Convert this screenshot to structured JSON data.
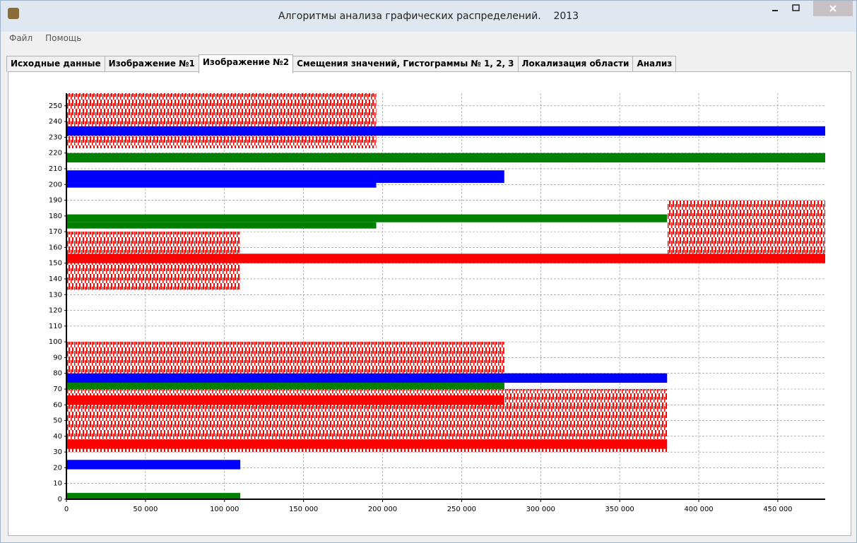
{
  "window": {
    "title": "Алгоритмы анализа графических распределений.    2013",
    "menu": [
      "Файл",
      "Помощь"
    ],
    "tabs": [
      "Исходные данные",
      "Изображение №1",
      "Изображение №2",
      "Смещения значений, Гистограммы № 1, 2, 3",
      "Локализация области",
      "Анализ"
    ],
    "active_tab": 2
  },
  "chart_data": {
    "type": "range",
    "xlim": [
      0,
      480000
    ],
    "ylim": [
      0,
      258
    ],
    "xticks": [
      0,
      {
        "value": 50000,
        "label": "50 000"
      },
      {
        "value": 100000,
        "label": "100 000"
      },
      {
        "value": 150000,
        "label": "150 000"
      },
      {
        "value": 200000,
        "label": "200 000"
      },
      {
        "value": 250000,
        "label": "250 000"
      },
      {
        "value": 300000,
        "label": "300 000"
      },
      {
        "value": 350000,
        "label": "350 000"
      },
      {
        "value": 400000,
        "label": "400 000"
      },
      {
        "value": 450000,
        "label": "450 000"
      }
    ],
    "yticks": [
      0,
      10,
      20,
      30,
      40,
      50,
      60,
      70,
      80,
      90,
      100,
      110,
      120,
      130,
      140,
      150,
      160,
      170,
      180,
      190,
      200,
      210,
      220,
      230,
      240,
      250
    ],
    "grid": true,
    "noise": {
      "color": "#ff0000",
      "regions": [
        {
          "x0": 0,
          "x1": 196000,
          "y0": 223,
          "y1": 258
        },
        {
          "x0": 0,
          "x1": 110000,
          "y0": 133,
          "y1": 170
        },
        {
          "x0": 380000,
          "x1": 480000,
          "y0": 155,
          "y1": 190
        },
        {
          "x0": 0,
          "x1": 277000,
          "y0": 30,
          "y1": 100
        },
        {
          "x0": 277000,
          "x1": 380000,
          "y0": 30,
          "y1": 70
        }
      ]
    },
    "segments": [
      {
        "color": "#0000ff",
        "x0": 0,
        "x1": 480000,
        "y0": 231,
        "y1": 237
      },
      {
        "color": "#008000",
        "x0": 0,
        "x1": 480000,
        "y0": 214,
        "y1": 220
      },
      {
        "color": "#0000ff",
        "x0": 0,
        "x1": 277000,
        "y0": 201,
        "y1": 209
      },
      {
        "color": "#0000ff",
        "x0": 0,
        "x1": 196000,
        "y0": 198,
        "y1": 201
      },
      {
        "color": "#008000",
        "x0": 0,
        "x1": 380000,
        "y0": 176,
        "y1": 181
      },
      {
        "color": "#008000",
        "x0": 0,
        "x1": 196000,
        "y0": 172,
        "y1": 176
      },
      {
        "color": "#ff0000",
        "x0": 0,
        "x1": 480000,
        "y0": 150,
        "y1": 156
      },
      {
        "color": "#ff0000",
        "x0": 0,
        "x1": 277000,
        "y0": 60,
        "y1": 66
      },
      {
        "color": "#ff0000",
        "x0": 0,
        "x1": 380000,
        "y0": 32,
        "y1": 38
      },
      {
        "color": "#0000ff",
        "x0": 0,
        "x1": 380000,
        "y0": 74,
        "y1": 80
      },
      {
        "color": "#008000",
        "x0": 0,
        "x1": 277000,
        "y0": 70,
        "y1": 74
      },
      {
        "color": "#0000ff",
        "x0": 0,
        "x1": 110000,
        "y0": 19,
        "y1": 25
      },
      {
        "color": "#008000",
        "x0": 0,
        "x1": 110000,
        "y0": 0,
        "y1": 4
      }
    ]
  }
}
